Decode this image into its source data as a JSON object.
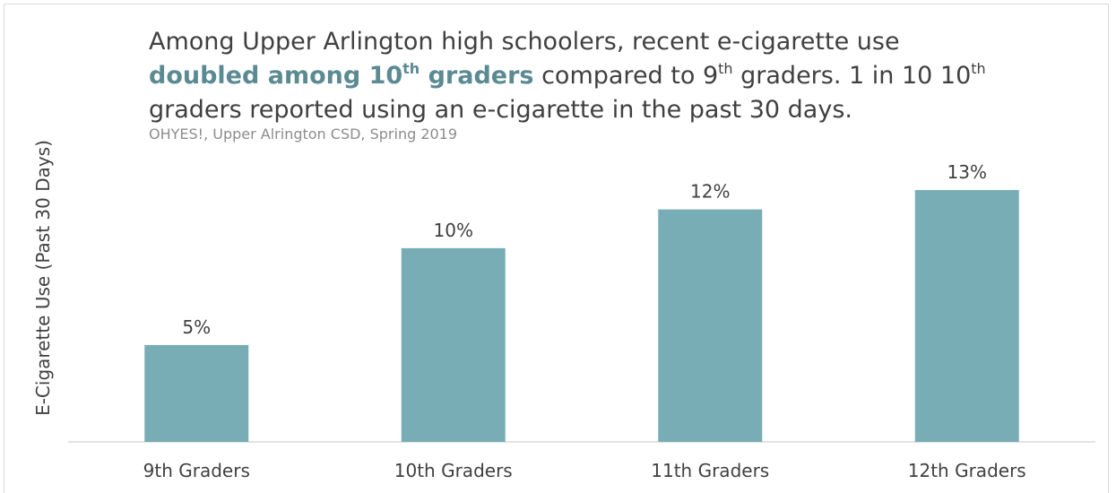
{
  "headline": {
    "part1": "Among Upper Arlington high schoolers, recent e-cigarette use",
    "highlight": "doubled among 10",
    "highlight_sup": "th",
    "highlight_tail": " graders",
    "part2": " compared to 9",
    "part2_sup": "th",
    "part3": " graders. 1 in 10 10",
    "part3_sup": "th",
    "part4": "graders reported using an e-cigarette in the past 30 days."
  },
  "source": "OHYES!, Upper Alrington CSD, Spring 2019",
  "colors": {
    "bar": "#78adb6",
    "highlight": "#5b8a93",
    "text": "#404040",
    "axis": "#d9d9d9"
  },
  "chart_data": {
    "type": "bar",
    "categories": [
      "9th Graders",
      "10th Graders",
      "11th Graders",
      "12th Graders"
    ],
    "values": [
      5,
      10,
      12,
      13
    ],
    "data_labels": [
      "5%",
      "10%",
      "12%",
      "13%"
    ],
    "title": "",
    "xlabel": "",
    "ylabel": "E-Cigarette Use (Past 30 Days)",
    "ylim": [
      0,
      13
    ],
    "grid": false,
    "legend": "none"
  }
}
